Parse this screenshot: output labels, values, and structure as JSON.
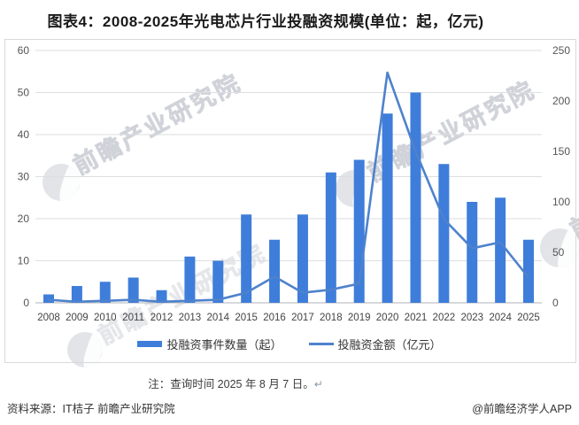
{
  "title": "图表4：2008-2025年光电芯片行业投融资规模(单位：起，亿元)",
  "chart_data": {
    "type": "bar",
    "subtype": "combo-bar-line",
    "categories": [
      "2008",
      "2009",
      "2010",
      "2011",
      "2012",
      "2013",
      "2014",
      "2015",
      "2016",
      "2017",
      "2018",
      "2019",
      "2020",
      "2021",
      "2022",
      "2023",
      "2024",
      "2025"
    ],
    "series": [
      {
        "name": "投融资事件数量（起）",
        "type": "bar",
        "axis": "left",
        "color": "#3E7DDA",
        "values": [
          2,
          4,
          5,
          6,
          3,
          11,
          10,
          21,
          15,
          21,
          31,
          34,
          45,
          50,
          33,
          24,
          25,
          15
        ]
      },
      {
        "name": "投融资金额（亿元）",
        "type": "line",
        "axis": "right",
        "color": "#4E82CC",
        "values": [
          3,
          1,
          2,
          3,
          1,
          2,
          3,
          10,
          26,
          10,
          13,
          19,
          228,
          150,
          83,
          54,
          60,
          25
        ]
      }
    ],
    "left_axis": {
      "min": 0,
      "max": 60,
      "step": 10
    },
    "right_axis": {
      "min": 0,
      "max": 250,
      "step": 50
    },
    "grid": true,
    "legend_position": "bottom"
  },
  "note": {
    "text": "注：查询时间 2025 年 8 月 7 日。",
    "return_mark": "↵"
  },
  "source": "资料来源：IT桔子 前瞻产业研究院",
  "credit": "@前瞻经济学人APP",
  "watermark": {
    "text": "前瞻产业研究院"
  },
  "colors": {
    "bar": "#3E7DDA",
    "line": "#4E82CC",
    "grid": "#dcdee1",
    "axis_zero": "#b0b3b8",
    "axis_text": "#555555",
    "x_text": "#444444",
    "border": "#d9d9d9"
  }
}
